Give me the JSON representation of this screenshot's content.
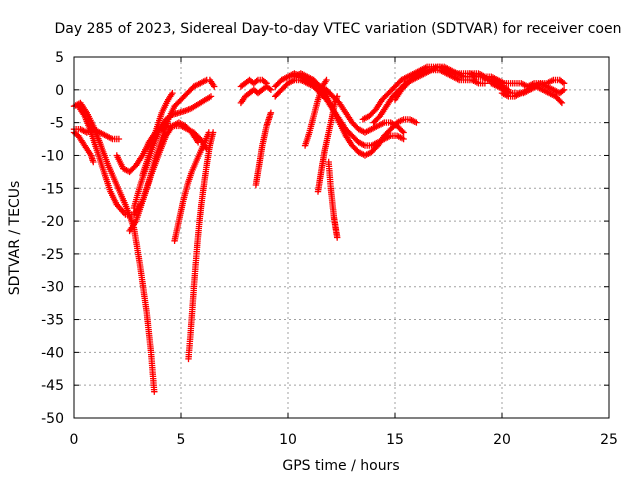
{
  "chart_data": {
    "type": "scatter",
    "title": "Day 285 of 2023, Sidereal Day-to-day VTEC variation (SDTVAR) for receiver coen",
    "xlabel": "GPS time / hours",
    "ylabel": "SDTVAR / TECUs",
    "xlim": [
      0,
      25
    ],
    "ylim": [
      -50,
      5
    ],
    "xticks": [
      0,
      5,
      10,
      15,
      20,
      25
    ],
    "xtick_labels": [
      "0",
      "5",
      "10",
      "15",
      "20",
      "25"
    ],
    "yticks": [
      5,
      0,
      -5,
      -10,
      -15,
      -20,
      -25,
      -30,
      -35,
      -40,
      -45,
      -50
    ],
    "ytick_labels": [
      "5",
      "0",
      "-5",
      "-10",
      "-15",
      "-20",
      "-25",
      "-30",
      "-35",
      "-40",
      "-45",
      "-50"
    ],
    "grid": true,
    "marker": "+",
    "color": "#ff0000",
    "tracks": [
      {
        "x": [
          0.0,
          0.3,
          0.6,
          0.9,
          1.2,
          1.6,
          2.0,
          2.4,
          2.8,
          3.1,
          3.4,
          3.6,
          3.75
        ],
        "y": [
          -2.5,
          -2.0,
          -3.5,
          -5.5,
          -8.0,
          -11.5,
          -14.5,
          -17.5,
          -21.0,
          -27.0,
          -34.0,
          -40.0,
          -46.0
        ]
      },
      {
        "x": [
          0.0,
          0.2,
          0.4,
          0.6,
          0.8,
          0.9
        ],
        "y": [
          -6.5,
          -7.0,
          -8.0,
          -9.0,
          -10.0,
          -11.0
        ]
      },
      {
        "x": [
          0.0,
          0.3,
          0.6,
          0.9,
          1.2,
          1.5,
          1.8,
          2.1
        ],
        "y": [
          -6.0,
          -6.0,
          -6.5,
          -6.0,
          -6.5,
          -7.0,
          -7.5,
          -7.5
        ]
      },
      {
        "x": [
          0.2,
          0.5,
          0.8,
          1.1,
          1.4,
          1.7,
          2.0,
          2.4,
          2.8,
          3.2,
          3.6,
          4.0,
          4.3,
          4.6,
          4.9,
          5.2,
          5.5,
          5.8
        ],
        "y": [
          -2.5,
          -4.0,
          -6.5,
          -9.5,
          -12.5,
          -15.5,
          -17.5,
          -19.0,
          -19.0,
          -17.0,
          -13.0,
          -9.5,
          -7.0,
          -5.5,
          -5.0,
          -5.5,
          -6.5,
          -8.0
        ]
      },
      {
        "x": [
          2.0,
          2.3,
          2.6,
          2.9,
          3.2,
          3.5,
          3.8,
          4.1,
          4.4,
          4.7,
          5.0,
          5.3,
          5.6,
          5.9,
          6.2
        ],
        "y": [
          -10.0,
          -12.0,
          -12.5,
          -11.5,
          -10.0,
          -8.0,
          -6.5,
          -6.0,
          -5.5,
          -5.5,
          -5.5,
          -6.0,
          -6.5,
          -7.5,
          -9.0
        ]
      },
      {
        "x": [
          2.6,
          2.9,
          3.2,
          3.5,
          3.8,
          4.1,
          4.4,
          4.7,
          5.0,
          5.3,
          5.6,
          5.9,
          6.2
        ],
        "y": [
          -21.5,
          -20.0,
          -17.0,
          -14.0,
          -10.5,
          -7.5,
          -4.5,
          -2.5,
          -1.5,
          -0.5,
          0.5,
          1.0,
          1.5
        ]
      },
      {
        "x": [
          2.8,
          3.1,
          3.4,
          3.7,
          4.0,
          4.3,
          4.6,
          4.9,
          5.2,
          5.5,
          5.8,
          6.1,
          6.4
        ],
        "y": [
          -18.0,
          -14.5,
          -11.5,
          -8.5,
          -6.0,
          -4.5,
          -3.8,
          -3.5,
          -3.2,
          -2.8,
          -2.2,
          -1.6,
          -1.0
        ]
      },
      {
        "x": [
          3.2,
          3.5,
          3.8,
          4.1,
          4.4,
          4.6
        ],
        "y": [
          -13.0,
          -10.0,
          -6.5,
          -3.5,
          -1.5,
          -0.5
        ]
      },
      {
        "x": [
          4.7,
          4.9,
          5.1,
          5.3,
          5.5,
          5.7,
          5.9,
          6.1,
          6.3
        ],
        "y": [
          -23.0,
          -20.0,
          -17.0,
          -14.5,
          -12.5,
          -11.0,
          -9.5,
          -8.0,
          -6.5
        ]
      },
      {
        "x": [
          5.35,
          5.45,
          5.55,
          5.65,
          5.75,
          5.85,
          5.95,
          6.05,
          6.2,
          6.35,
          6.5
        ],
        "y": [
          -41.0,
          -37.0,
          -32.5,
          -28.0,
          -24.0,
          -20.5,
          -17.5,
          -15.0,
          -11.5,
          -8.5,
          -6.5
        ]
      },
      {
        "x": [
          6.35,
          6.45,
          6.55
        ],
        "y": [
          1.5,
          1.0,
          0.5
        ]
      },
      {
        "x": [
          7.8,
          8.0,
          8.2,
          8.4,
          8.6,
          8.8,
          9.0
        ],
        "y": [
          0.5,
          1.0,
          1.5,
          1.0,
          1.5,
          1.5,
          1.0
        ]
      },
      {
        "x": [
          7.8,
          8.0,
          8.2,
          8.4,
          8.6,
          8.8,
          9.0,
          9.2
        ],
        "y": [
          -2.0,
          -1.0,
          -0.5,
          0.0,
          -0.5,
          0.0,
          0.5,
          0.0
        ]
      },
      {
        "x": [
          8.5,
          8.6,
          8.7,
          8.8,
          8.9,
          9.0,
          9.1,
          9.2
        ],
        "y": [
          -14.5,
          -12.5,
          -10.5,
          -8.5,
          -7.0,
          -5.5,
          -4.5,
          -3.5
        ]
      },
      {
        "x": [
          9.4,
          9.7,
          10.0,
          10.3,
          10.6,
          10.9,
          11.2,
          11.5,
          11.8,
          12.1,
          12.4,
          12.7,
          13.0,
          13.3,
          13.6,
          13.9,
          14.2,
          14.5,
          14.8,
          15.1,
          15.4
        ],
        "y": [
          0.5,
          1.5,
          2.0,
          2.5,
          2.0,
          1.5,
          1.0,
          0.5,
          0.0,
          -1.0,
          -2.0,
          -3.5,
          -5.0,
          -6.0,
          -6.5,
          -6.0,
          -5.5,
          -5.0,
          -5.0,
          -5.5,
          -6.5
        ]
      },
      {
        "x": [
          9.4,
          9.7,
          10.0,
          10.3,
          10.6,
          10.9,
          11.2,
          11.5,
          11.8,
          12.1,
          12.4,
          12.7,
          13.0,
          13.3,
          13.6,
          13.9,
          14.2,
          14.5,
          14.8,
          15.1,
          15.4
        ],
        "y": [
          -1.0,
          0.0,
          1.0,
          1.5,
          1.5,
          1.0,
          0.5,
          -0.5,
          -1.5,
          -3.0,
          -4.5,
          -6.0,
          -7.0,
          -8.0,
          -8.5,
          -8.5,
          -8.0,
          -7.5,
          -7.0,
          -7.0,
          -7.5
        ]
      },
      {
        "x": [
          10.3,
          10.6,
          10.9,
          11.2,
          11.5,
          11.8,
          12.1,
          12.4,
          12.7,
          13.0,
          13.3,
          13.6,
          13.9,
          14.2,
          14.5,
          14.8,
          15.1,
          15.4,
          15.7,
          16.0
        ],
        "y": [
          2.0,
          2.5,
          2.0,
          1.5,
          0.5,
          -1.0,
          -3.0,
          -5.0,
          -7.0,
          -8.5,
          -9.5,
          -10.0,
          -9.5,
          -8.5,
          -7.0,
          -6.0,
          -5.0,
          -4.5,
          -4.5,
          -5.0
        ]
      },
      {
        "x": [
          10.8,
          11.0,
          11.2,
          11.4,
          11.6,
          11.8
        ],
        "y": [
          -8.5,
          -6.5,
          -4.0,
          -1.5,
          0.5,
          1.5
        ]
      },
      {
        "x": [
          11.4,
          11.5,
          11.6,
          11.7,
          11.8,
          11.9,
          12.0,
          12.1,
          12.2,
          12.3
        ],
        "y": [
          -15.5,
          -13.5,
          -11.5,
          -9.5,
          -8.0,
          -6.5,
          -5.0,
          -3.5,
          -2.0,
          -1.0
        ]
      },
      {
        "x": [
          11.9,
          11.95,
          12.0,
          12.05,
          12.1,
          12.15,
          12.2,
          12.25,
          12.3
        ],
        "y": [
          -11.0,
          -13.0,
          -15.0,
          -16.5,
          -18.0,
          -19.5,
          -20.5,
          -21.5,
          -22.5
        ]
      },
      {
        "x": [
          13.5,
          13.8,
          14.1,
          14.4,
          14.7,
          15.0,
          15.3,
          15.6,
          15.9,
          16.2,
          16.5,
          16.8,
          17.1,
          17.4,
          17.7,
          18.0,
          18.3,
          18.6,
          18.9,
          19.2,
          19.5,
          19.8,
          20.1
        ],
        "y": [
          -4.5,
          -4.0,
          -3.0,
          -1.5,
          -0.5,
          0.5,
          1.5,
          2.0,
          2.5,
          3.0,
          3.5,
          3.5,
          3.5,
          3.0,
          2.5,
          2.5,
          2.5,
          2.5,
          2.5,
          2.0,
          2.0,
          1.5,
          1.0
        ]
      },
      {
        "x": [
          14.0,
          14.3,
          14.6,
          14.9,
          15.2,
          15.5,
          15.8,
          16.1,
          16.4,
          16.7,
          17.0,
          17.3,
          17.6,
          17.9,
          18.2,
          18.5,
          18.8,
          19.1,
          19.4,
          19.7,
          20.0,
          20.3
        ],
        "y": [
          -5.0,
          -4.0,
          -2.5,
          -1.0,
          0.0,
          1.0,
          1.5,
          2.0,
          2.5,
          3.0,
          3.5,
          3.5,
          3.0,
          2.5,
          2.0,
          2.0,
          2.0,
          2.0,
          1.5,
          1.0,
          0.5,
          0.0
        ]
      },
      {
        "x": [
          15.0,
          15.3,
          15.6,
          15.9,
          16.2,
          16.5,
          16.8,
          17.1,
          17.4,
          17.7,
          18.0,
          18.3,
          18.6,
          18.9,
          19.2
        ],
        "y": [
          -1.5,
          0.0,
          1.0,
          2.0,
          2.5,
          3.0,
          3.0,
          3.0,
          2.5,
          2.0,
          1.5,
          1.5,
          1.5,
          1.0,
          1.0
        ]
      },
      {
        "x": [
          18.5,
          18.8,
          19.1,
          19.4,
          19.7,
          20.0,
          20.3,
          20.6,
          20.9,
          21.2,
          21.5,
          21.8,
          22.1,
          22.4,
          22.7,
          22.9
        ],
        "y": [
          2.5,
          2.0,
          2.0,
          1.5,
          1.5,
          1.0,
          1.0,
          1.0,
          1.0,
          0.5,
          1.0,
          1.0,
          1.0,
          1.5,
          1.5,
          1.0
        ]
      },
      {
        "x": [
          19.5,
          19.8,
          20.1,
          20.4,
          20.7,
          21.0,
          21.3,
          21.6,
          21.9,
          22.2,
          22.5,
          22.8
        ],
        "y": [
          1.0,
          0.5,
          0.0,
          -0.5,
          -0.5,
          -0.5,
          0.0,
          0.5,
          0.0,
          -0.5,
          -1.0,
          -2.0
        ]
      },
      {
        "x": [
          20.0,
          20.3,
          20.6,
          20.9,
          21.2,
          21.5,
          21.8,
          22.1,
          22.4,
          22.7,
          22.9
        ],
        "y": [
          -0.5,
          -1.0,
          -1.0,
          -0.5,
          0.0,
          0.5,
          1.0,
          0.5,
          0.0,
          -0.5,
          0.0
        ]
      }
    ]
  }
}
